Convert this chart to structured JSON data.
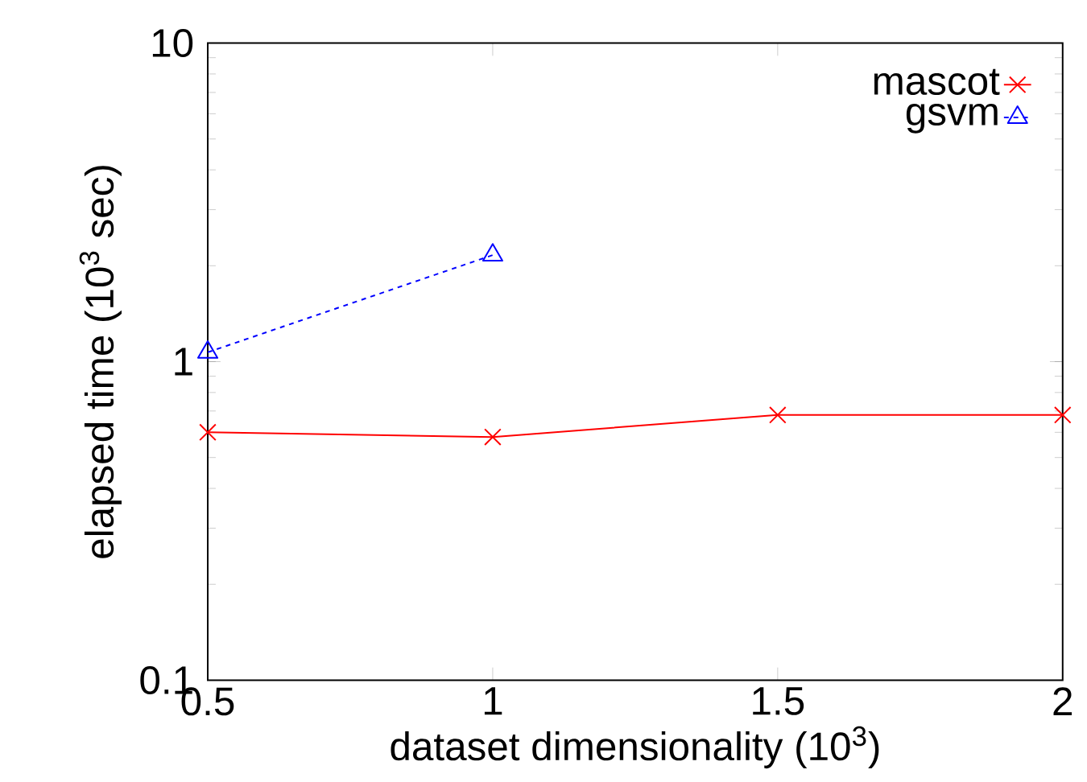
{
  "chart_data": {
    "type": "line",
    "xlabel": "dataset dimensionality (10$^{3}$)",
    "ylabel": "elapsed time (10$^{3}$ sec)",
    "log": "y",
    "xlim": [
      0.5,
      2
    ],
    "xticks": [
      0.5,
      1,
      1.5,
      2
    ],
    "ylim": [
      0.1,
      10
    ],
    "yticks": [
      0.1,
      1,
      10
    ],
    "grid": false,
    "legend": "top right",
    "series": [
      {
        "name": "mascot",
        "color": "#ff0000",
        "marker": "cross",
        "line_style": "solid",
        "x": [
          0.5,
          1,
          1.5,
          2
        ],
        "values": [
          0.6,
          0.58,
          0.68,
          0.68
        ]
      },
      {
        "name": "gsvm",
        "color": "#0000ff",
        "marker": "triangle",
        "line_style": "dashed",
        "x": [
          0.5,
          1
        ],
        "values": [
          1.07,
          2.16
        ]
      }
    ]
  }
}
